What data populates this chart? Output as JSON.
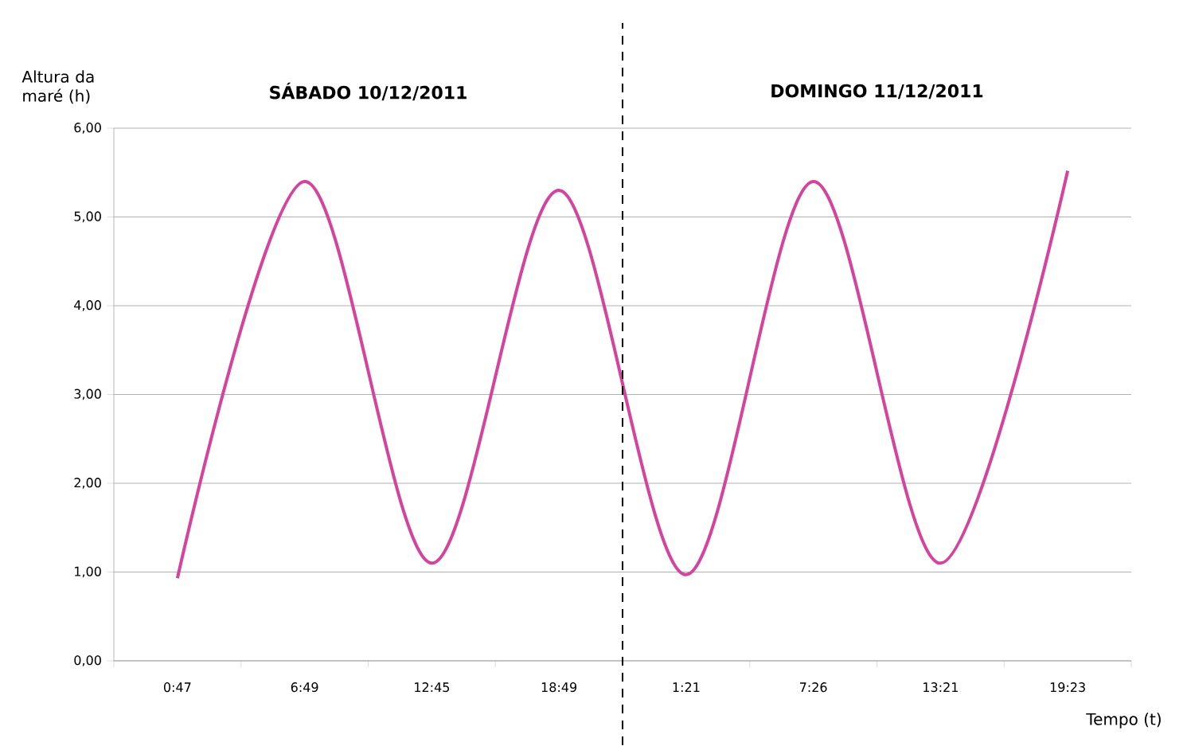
{
  "chart_data": {
    "type": "line",
    "xlabel": "Tempo (t)",
    "ylabel": "Altura da maré (h)",
    "categories": [
      "0:47",
      "6:49",
      "12:45",
      "18:49",
      "1:21",
      "7:26",
      "13:21",
      "19:23"
    ],
    "series": [
      {
        "color": "#d4449e",
        "values": [
          0.93,
          5.4,
          1.1,
          5.3,
          0.97,
          5.4,
          1.1,
          5.52
        ]
      }
    ],
    "ylim": [
      0,
      6
    ],
    "yticks": [
      {
        "value": 0,
        "label": "0,00"
      },
      {
        "value": 1,
        "label": "1,00"
      },
      {
        "value": 2,
        "label": "2,00"
      },
      {
        "value": 3,
        "label": "3,00"
      },
      {
        "value": 4,
        "label": "4,00"
      },
      {
        "value": 5,
        "label": "5,00"
      },
      {
        "value": 6,
        "label": "6,00"
      }
    ],
    "grid": "y",
    "marker": "none",
    "line_style": "solid",
    "annotations": [
      "SÁBADO 10/12/2011",
      "DOMINGO 11/12/2011"
    ]
  }
}
